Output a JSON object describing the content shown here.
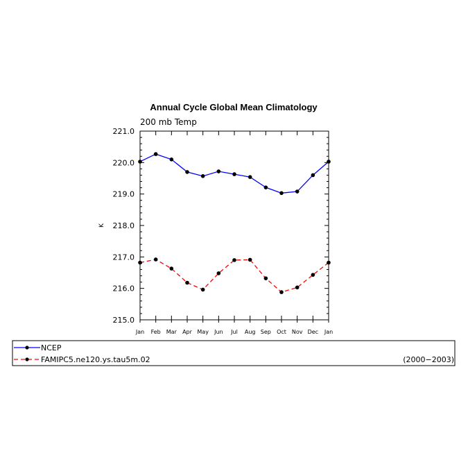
{
  "chart_data": {
    "type": "line",
    "title": "Annual Cycle Global Mean Climatology",
    "subtitle": "200 mb Temp",
    "xlabel": "",
    "ylabel": "K",
    "categories": [
      "Jan",
      "Feb",
      "Mar",
      "Apr",
      "May",
      "Jun",
      "Jul",
      "Aug",
      "Sep",
      "Oct",
      "Nov",
      "Dec",
      "Jan"
    ],
    "ylim": [
      215.0,
      221.0
    ],
    "yticks": [
      "215.0",
      "216.0",
      "217.0",
      "218.0",
      "219.0",
      "220.0",
      "221.0"
    ],
    "series": [
      {
        "name": "NCEP",
        "color": "#0000ff",
        "dash": "solid",
        "marker": "dot",
        "values": [
          220.03,
          220.27,
          220.1,
          219.7,
          219.57,
          219.72,
          219.63,
          219.54,
          219.21,
          219.03,
          219.08,
          219.6,
          220.03
        ]
      },
      {
        "name": "FAMIPC5.ne120.ys.tau5m.02",
        "color": "#ff0000",
        "dash": "dashed",
        "marker": "dot",
        "values": [
          216.82,
          216.92,
          216.63,
          216.18,
          215.96,
          216.48,
          216.9,
          216.91,
          216.32,
          215.88,
          216.03,
          216.43,
          216.82
        ]
      }
    ],
    "grid": false,
    "legend_position": "bottom"
  },
  "legend": {
    "period": "(2000−2003)"
  }
}
